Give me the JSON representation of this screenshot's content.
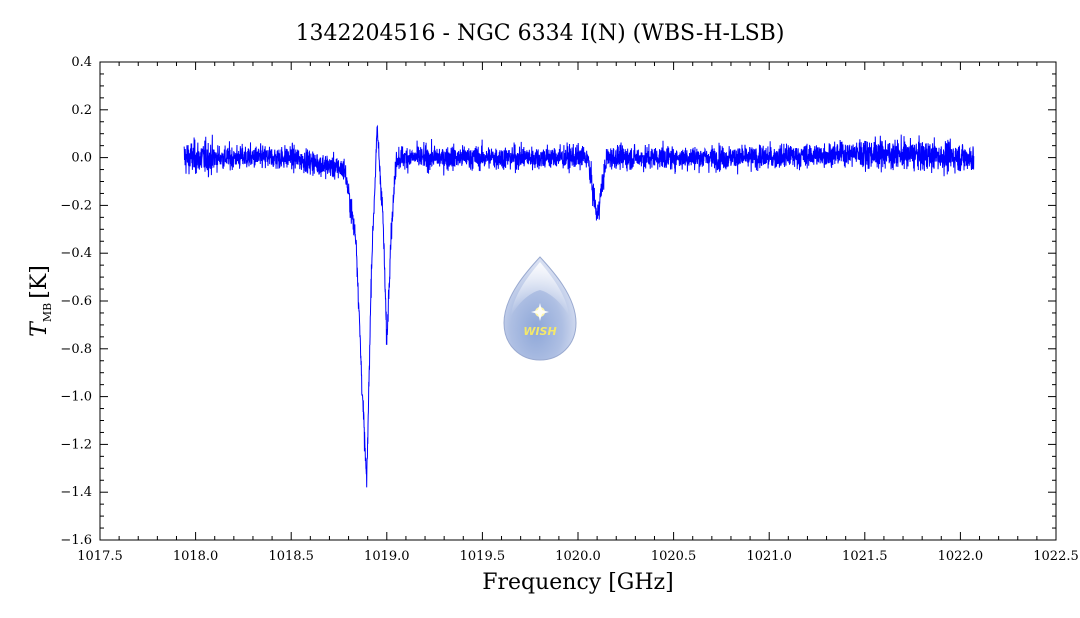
{
  "chart_data": {
    "type": "line",
    "title": "1342204516 - NGC 6334 I(N) (WBS-H-LSB)",
    "xlabel": "Frequency [GHz]",
    "ylabel": {
      "symbol": "T",
      "subscript": "MB",
      "unit": "[K]"
    },
    "xlim": [
      1017.5,
      1022.5
    ],
    "ylim": [
      -1.6,
      0.4
    ],
    "xticks": [
      1017.5,
      1018.0,
      1018.5,
      1019.0,
      1019.5,
      1020.0,
      1020.5,
      1021.0,
      1021.5,
      1022.0,
      1022.5
    ],
    "xtick_labels": [
      "1017.5",
      "1018.0",
      "1018.5",
      "1019.0",
      "1019.5",
      "1020.0",
      "1020.5",
      "1021.0",
      "1021.5",
      "1022.0",
      "1022.5"
    ],
    "yticks": [
      0.4,
      0.2,
      0.0,
      -0.2,
      -0.4,
      -0.6,
      -0.8,
      -1.0,
      -1.2,
      -1.4,
      -1.6
    ],
    "ytick_labels": [
      "0.4",
      "0.2",
      "0.0",
      "−0.2",
      "−0.4",
      "−0.6",
      "−0.8",
      "−1.0",
      "−1.2",
      "−1.4",
      "−1.6"
    ],
    "grid": false,
    "series": [
      {
        "color": "#0000ff",
        "x_range": [
          1017.94,
          1022.07
        ],
        "noise_rms": 0.045,
        "features": [
          {
            "x": 1018.87,
            "depth": -0.95
          },
          {
            "x": 1018.895,
            "depth": -1.37
          },
          {
            "x": 1019.0,
            "depth": -0.78
          },
          {
            "x": 1020.1,
            "depth": -0.25
          }
        ],
        "x": [
          1017.94,
          1018.2,
          1018.5,
          1018.78,
          1018.84,
          1018.87,
          1018.895,
          1018.92,
          1018.95,
          1018.98,
          1019.0,
          1019.02,
          1019.05,
          1019.5,
          1020.05,
          1020.1,
          1020.15,
          1020.5,
          1021.0,
          1021.5,
          1022.07
        ],
        "y": [
          0.0,
          0.0,
          0.0,
          -0.05,
          -0.35,
          -0.95,
          -1.37,
          -0.45,
          0.12,
          -0.25,
          -0.78,
          -0.35,
          0.0,
          0.0,
          0.0,
          -0.25,
          0.0,
          0.0,
          0.0,
          0.02,
          0.0
        ]
      }
    ],
    "logo": {
      "text": "WISH"
    }
  }
}
